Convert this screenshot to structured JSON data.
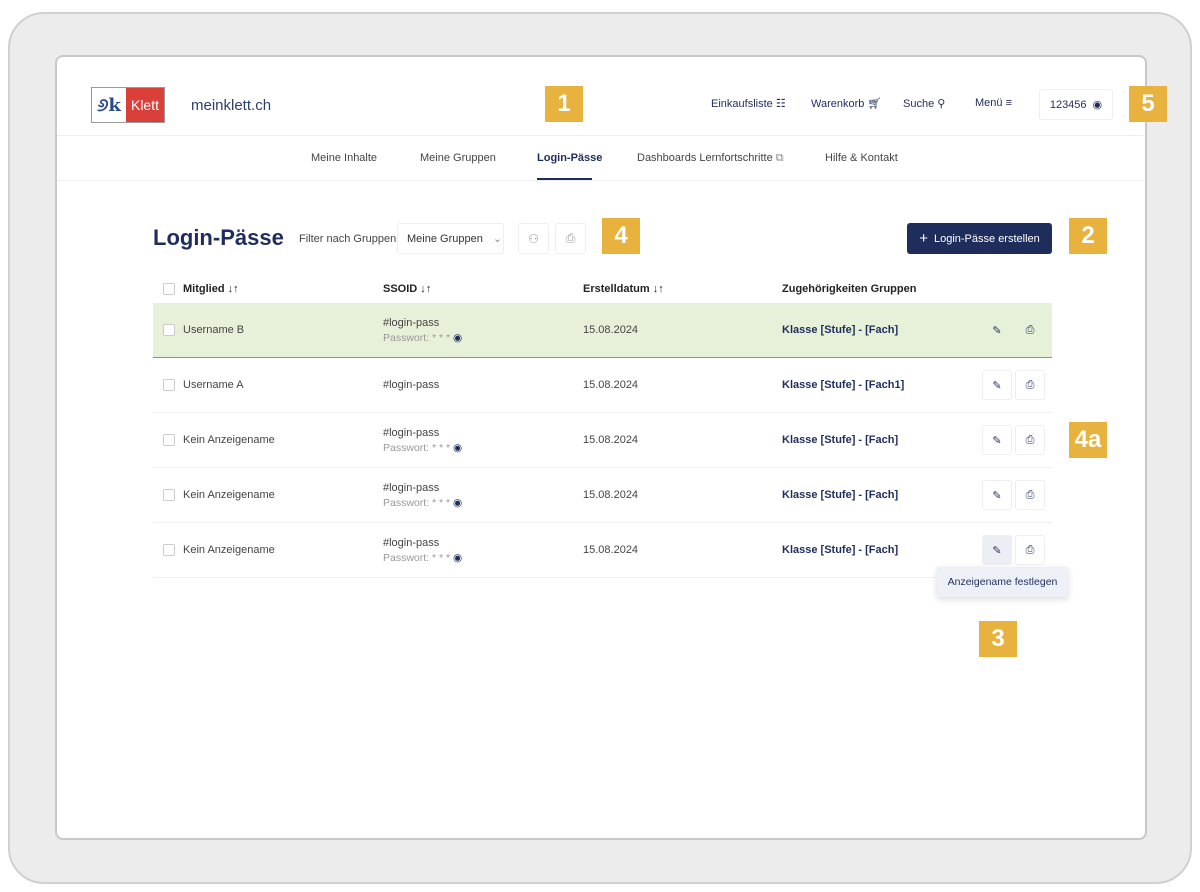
{
  "header": {
    "logo_text": "Klett",
    "site_name": "meinklett.ch",
    "links": [
      {
        "label": "Einkaufsliste",
        "icon": "list-icon"
      },
      {
        "label": "Warenkorb",
        "icon": "cart-icon"
      },
      {
        "label": "Suche",
        "icon": "search-icon"
      },
      {
        "label": "Menü",
        "icon": "menu-icon"
      }
    ],
    "account": "123456"
  },
  "nav": {
    "tabs": [
      {
        "label": "Meine Inhalte"
      },
      {
        "label": "Meine Gruppen"
      },
      {
        "label": "Login-Pässe",
        "active": true
      },
      {
        "label": "Dashboards Lernfortschritte",
        "external": true
      },
      {
        "label": "Hilfe & Kontakt"
      }
    ]
  },
  "page": {
    "title": "Login-Pässe",
    "filter_label": "Filter nach Gruppen",
    "filter_value": "Meine Gruppen",
    "create_label": "Login-Pässe erstellen"
  },
  "table": {
    "columns": [
      "Mitglied",
      "SSOID",
      "Erstelldatum",
      "Zugehörigkeiten Gruppen"
    ],
    "rows": [
      {
        "name": "Username B",
        "ssoid": "#login-pass",
        "password": "Passwort: * * *",
        "date": "15.08.2024",
        "group": "Klasse [Stufe] - [Fach]",
        "selected": true
      },
      {
        "name": "Username A",
        "ssoid": "#login-pass",
        "password": "",
        "date": "15.08.2024",
        "group": "Klasse [Stufe] - [Fach1]"
      },
      {
        "name": "Kein Anzeigename",
        "ssoid": "#login-pass",
        "password": "Passwort: * * *",
        "date": "15.08.2024",
        "group": "Klasse [Stufe] - [Fach]"
      },
      {
        "name": "Kein Anzeigename",
        "ssoid": "#login-pass",
        "password": "Passwort: * * *",
        "date": "15.08.2024",
        "group": "Klasse [Stufe] - [Fach]"
      },
      {
        "name": "Kein Anzeigename",
        "ssoid": "#login-pass",
        "password": "Passwort: * * *",
        "date": "15.08.2024",
        "group": "Klasse [Stufe] - [Fach]"
      }
    ]
  },
  "tooltip": "Anzeigename festlegen",
  "annotations": [
    "1",
    "2",
    "3",
    "4",
    "4a",
    "5"
  ],
  "colors": {
    "brand": "#1f2d5c",
    "accent_red": "#d9403a",
    "selected_row": "#e7f1d9",
    "annotation": "#e8b23e"
  }
}
